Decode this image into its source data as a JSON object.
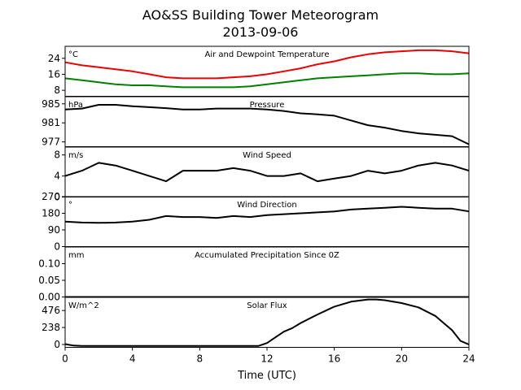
{
  "figure": {
    "title_line1": "AO&SS Building Tower Meteorogram",
    "title_line2": "2013-09-06",
    "xlabel": "Time (UTC)"
  },
  "chart_data": {
    "type": "line",
    "xlim": [
      0,
      24
    ],
    "x_ticks": [
      0,
      4,
      8,
      12,
      16,
      20,
      24
    ],
    "x_tick_labels": [
      "0",
      "4",
      "8",
      "12",
      "16",
      "20",
      "24"
    ],
    "panels": [
      {
        "id": "temperature",
        "unit": "°C",
        "label": "Air and Dewpoint Temperature",
        "ylim": [
          5,
          30
        ],
        "y_ticks": [
          8,
          16,
          24
        ],
        "y_tick_labels": [
          "8",
          "16",
          "24"
        ],
        "series": [
          {
            "color": "#ee0000",
            "x": [
              0,
              1,
              2,
              3,
              4,
              5,
              6,
              7,
              8,
              9,
              10,
              11,
              12,
              13,
              14,
              15,
              16,
              17,
              18,
              19,
              20,
              21,
              22,
              23,
              24
            ],
            "values": [
              22,
              20.5,
              19.5,
              18.5,
              17.5,
              16,
              14.5,
              14,
              14,
              14,
              14.5,
              15,
              16,
              17.5,
              19,
              21,
              22.5,
              24.5,
              26,
              27,
              27.5,
              28,
              28,
              27.5,
              26.5
            ]
          },
          {
            "color": "#008000",
            "x": [
              0,
              1,
              2,
              3,
              4,
              5,
              6,
              7,
              8,
              9,
              10,
              11,
              12,
              13,
              14,
              15,
              16,
              17,
              18,
              19,
              20,
              21,
              22,
              23,
              24
            ],
            "values": [
              14,
              13,
              12,
              11,
              10.5,
              10.5,
              10,
              9.5,
              9.5,
              9.5,
              9.5,
              10,
              11,
              12,
              13,
              14,
              14.5,
              15,
              15.5,
              16,
              16.5,
              16.5,
              16,
              16,
              16.5
            ]
          }
        ]
      },
      {
        "id": "pressure",
        "unit": "hPa",
        "label": "Pressure",
        "ylim": [
          976,
          986.5
        ],
        "y_ticks": [
          977,
          981,
          985
        ],
        "y_tick_labels": [
          "977",
          "981",
          "985"
        ],
        "series": [
          {
            "color": "#000000",
            "x": [
              0,
              1,
              2,
              3,
              4,
              5,
              6,
              7,
              8,
              9,
              10,
              11,
              12,
              13,
              14,
              15,
              16,
              17,
              18,
              19,
              20,
              21,
              22,
              23,
              24
            ],
            "values": [
              983.8,
              984,
              984.8,
              984.8,
              984.5,
              984.3,
              984.1,
              983.8,
              983.8,
              984,
              984,
              984,
              983.8,
              983.5,
              983,
              982.8,
              982.5,
              981.5,
              980.5,
              980,
              979.3,
              978.8,
              978.5,
              978.2,
              976.5
            ]
          }
        ]
      },
      {
        "id": "wind_speed",
        "unit": "m/s",
        "label": "Wind Speed",
        "ylim": [
          0,
          9.5
        ],
        "y_ticks": [
          0,
          4,
          8
        ],
        "y_tick_labels": [
          "0",
          "4",
          "8"
        ],
        "series": [
          {
            "color": "#000000",
            "x": [
              0,
              1,
              2,
              3,
              4,
              5,
              6,
              7,
              8,
              9,
              10,
              11,
              12,
              13,
              14,
              15,
              16,
              17,
              18,
              19,
              20,
              21,
              22,
              23,
              24
            ],
            "values": [
              4,
              5,
              6.5,
              6,
              5,
              4,
              3,
              5,
              5,
              5,
              5.5,
              5,
              4,
              4,
              4.5,
              3,
              3.5,
              4,
              5,
              4.5,
              5,
              6,
              6.5,
              6,
              5
            ]
          }
        ]
      },
      {
        "id": "wind_direction",
        "unit": "°",
        "label": "Wind Direction",
        "ylim": [
          0,
          270
        ],
        "y_ticks": [
          0,
          90,
          180,
          270
        ],
        "y_tick_labels": [
          "0",
          "90",
          "180",
          "270"
        ],
        "series": [
          {
            "color": "#000000",
            "x": [
              0,
              1,
              2,
              3,
              4,
              5,
              6,
              7,
              8,
              9,
              10,
              11,
              12,
              13,
              14,
              15,
              16,
              17,
              18,
              19,
              20,
              21,
              22,
              23,
              24
            ],
            "values": [
              135,
              130,
              128,
              130,
              135,
              145,
              165,
              160,
              160,
              155,
              165,
              160,
              170,
              175,
              180,
              185,
              190,
              200,
              205,
              210,
              215,
              210,
              205,
              205,
              190
            ]
          }
        ]
      },
      {
        "id": "precipitation",
        "unit": "mm",
        "label": "Accumulated Precipitation Since 0Z",
        "ylim": [
          0,
          0.15
        ],
        "y_ticks": [
          0,
          0.05,
          0.1
        ],
        "y_tick_labels": [
          "0.00",
          "0.05",
          "0.10"
        ],
        "series": [
          {
            "color": "#000000",
            "x": [
              0,
              24
            ],
            "values": [
              0,
              0
            ]
          }
        ]
      },
      {
        "id": "solar_flux",
        "unit": "W/m^2",
        "label": "Solar Flux",
        "ylim": [
          -40,
          660
        ],
        "y_ticks": [
          0,
          238,
          476
        ],
        "y_tick_labels": [
          "0",
          "238",
          "476"
        ],
        "series": [
          {
            "color": "#000000",
            "x": [
              0,
              0.5,
              1,
              5,
              10,
              11.5,
              12,
              12.5,
              13,
              13.5,
              14,
              15,
              16,
              17,
              18,
              18.5,
              19,
              20,
              21,
              22,
              22.5,
              23,
              23.5,
              24
            ],
            "values": [
              5,
              -15,
              -20,
              -20,
              -20,
              -20,
              20,
              100,
              180,
              230,
              300,
              420,
              530,
              600,
              630,
              630,
              620,
              580,
              520,
              400,
              300,
              200,
              50,
              0
            ]
          }
        ]
      }
    ]
  }
}
